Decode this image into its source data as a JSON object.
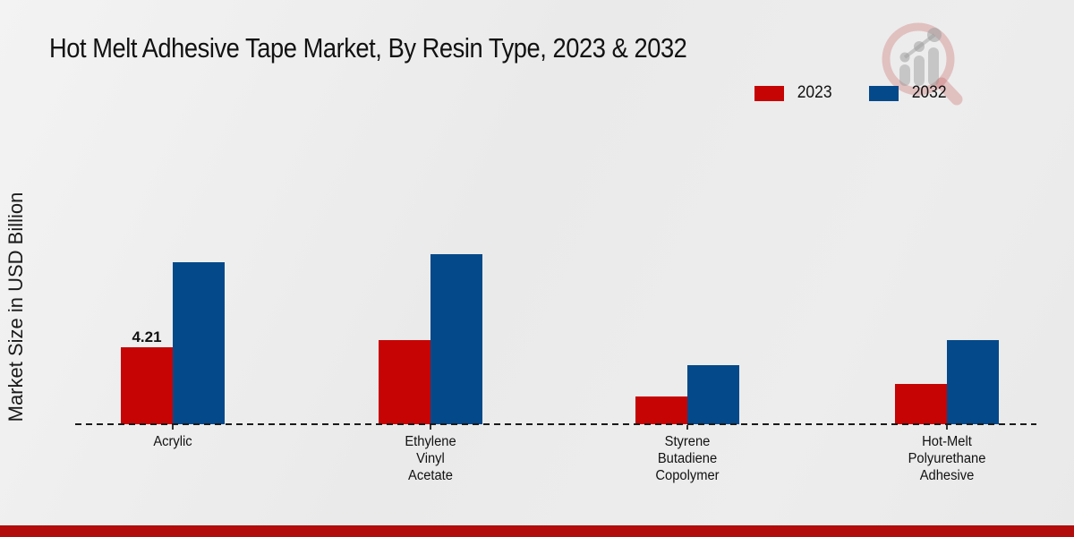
{
  "page_title": "Hot Melt Adhesive Tape Market, By Resin Type, 2023 & 2032",
  "ylabel": "Market Size in USD Billion",
  "icons": {
    "watermark": "magnifier-bar-chart-logo"
  },
  "footer": {
    "color": "#b30c0c"
  },
  "chart_data": {
    "type": "bar",
    "title": "Hot Melt Adhesive Tape Market, By Resin Type, 2023 & 2032",
    "xlabel": "",
    "ylabel": "Market Size in USD Billion",
    "categories": [
      "Acrylic",
      "Ethylene Vinyl Acetate",
      "Styrene Butadiene Copolymer",
      "Hot-Melt Polyurethane Adhesive"
    ],
    "category_lines": [
      [
        "Acrylic"
      ],
      [
        "Ethylene",
        "Vinyl",
        "Acetate"
      ],
      [
        "Styrene",
        "Butadiene",
        "Copolymer"
      ],
      [
        "Hot-Melt",
        "Polyurethane",
        "Adhesive"
      ]
    ],
    "series": [
      {
        "name": "2023",
        "color": "#c70404",
        "values": [
          4.21,
          4.58,
          1.54,
          2.18
        ]
      },
      {
        "name": "2032",
        "color": "#04498a",
        "values": [
          8.86,
          9.32,
          3.21,
          4.6
        ]
      }
    ],
    "value_labels": [
      {
        "series_index": 0,
        "category_index": 0,
        "text": "4.21"
      }
    ],
    "ylim": [
      0,
      10
    ],
    "grid": false,
    "axis_style": "dashed-baseline-only",
    "legend_position": "top-right"
  }
}
